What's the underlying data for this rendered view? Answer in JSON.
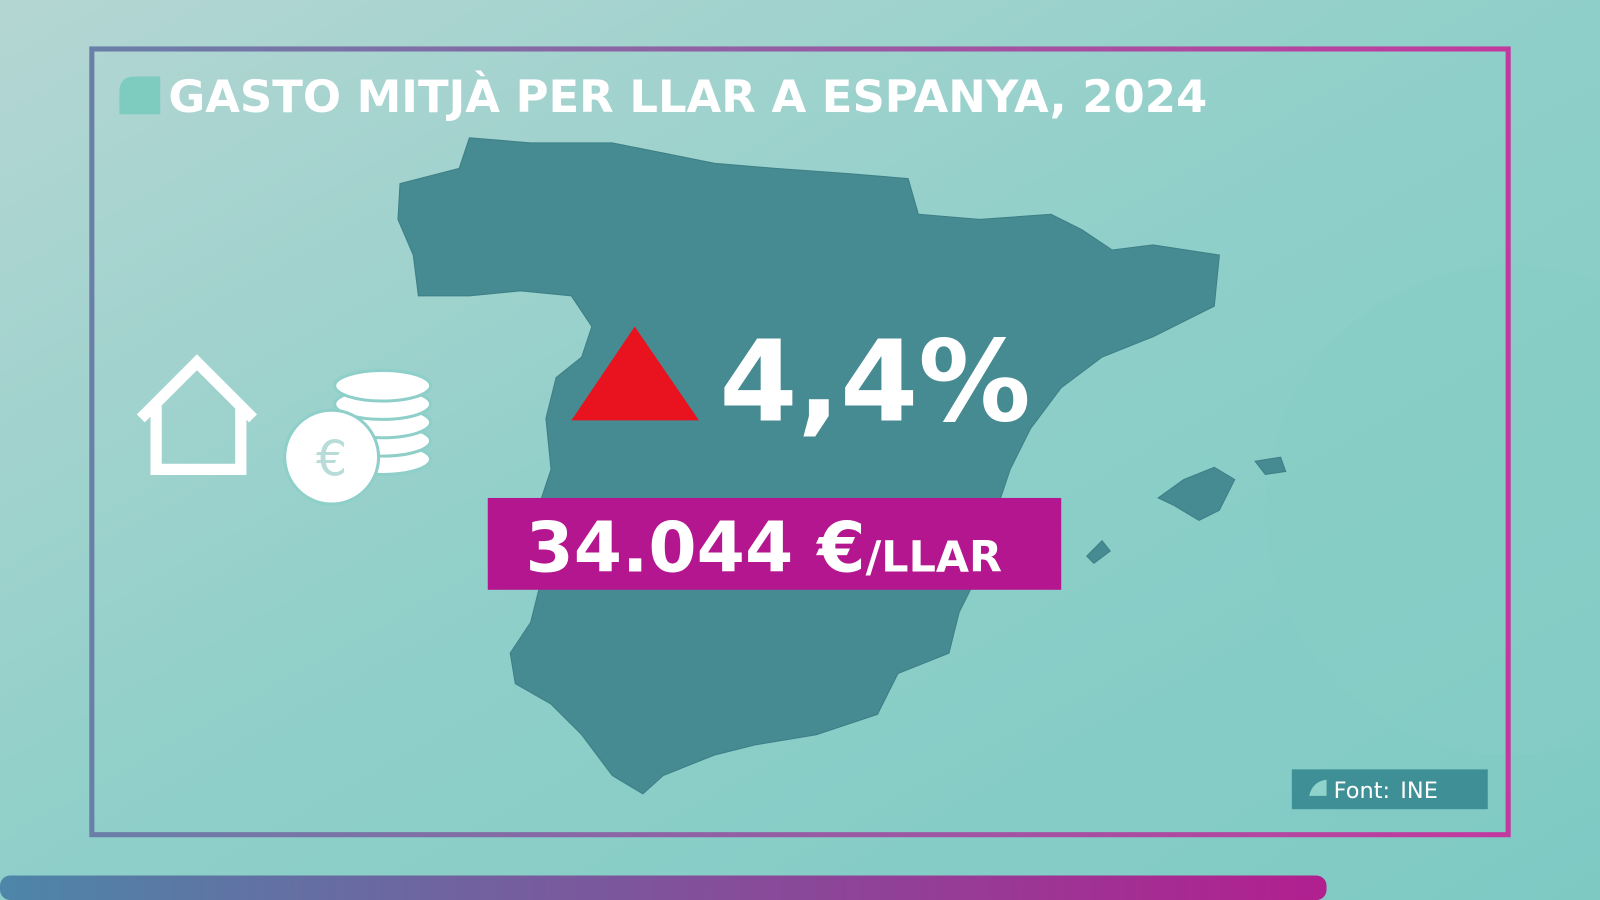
{
  "title": "GASTO MITJÀ PER LLAR A ESPANYA, 2024",
  "change": "4,4%",
  "amount": "34.044 €",
  "unit": "/LLAR",
  "source": {
    "label": "Font:",
    "value": "INE"
  }
}
